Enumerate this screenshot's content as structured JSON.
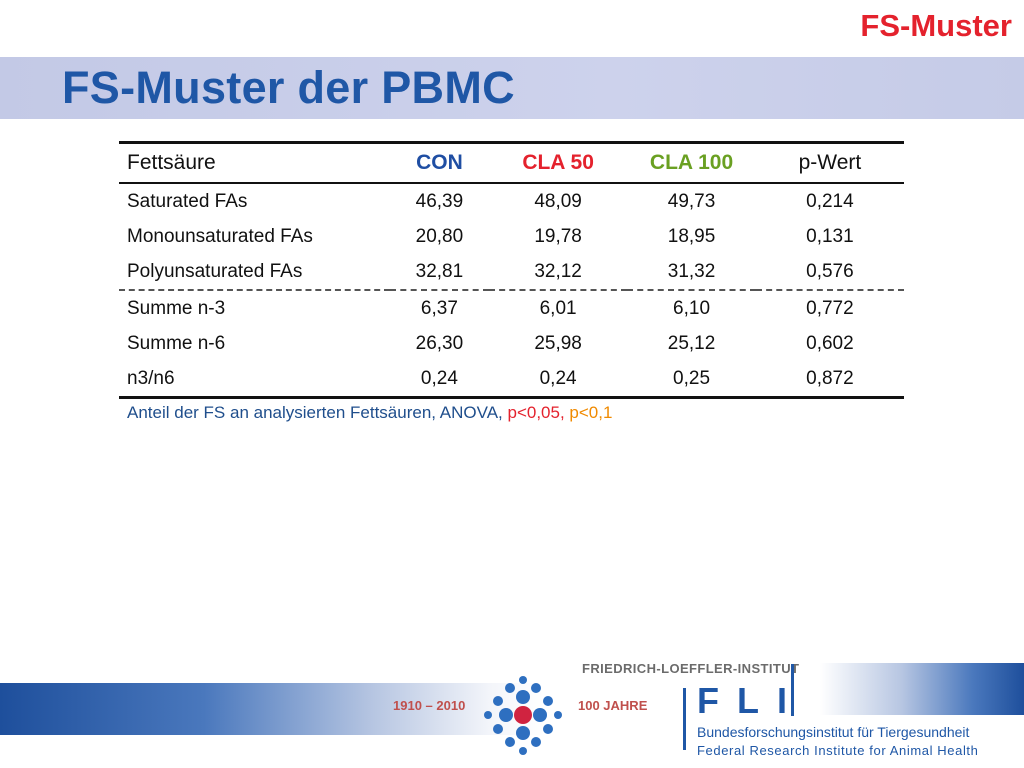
{
  "header": {
    "corner_label": "FS-Muster",
    "title": "FS-Muster der PBMC"
  },
  "table": {
    "headers": [
      {
        "label": "Fettsäure",
        "color": "#111111"
      },
      {
        "label": "CON",
        "color": "#1f4ea3"
      },
      {
        "label": "CLA 50",
        "color": "#e4222d"
      },
      {
        "label": "CLA 100",
        "color": "#6aa022"
      },
      {
        "label": "p-Wert",
        "color": "#111111"
      }
    ],
    "rows": [
      [
        "Saturated FAs",
        "46,39",
        "48,09",
        "49,73",
        "0,214"
      ],
      [
        "Monounsaturated FAs",
        "20,80",
        "19,78",
        "18,95",
        "0,131"
      ],
      [
        "Polyunsaturated FAs",
        "32,81",
        "32,12",
        "31,32",
        "0,576"
      ],
      [
        "Summe n-3",
        "6,37",
        "6,01",
        "6,10",
        "0,772"
      ],
      [
        "Summe n-6",
        "26,30",
        "25,98",
        "25,12",
        "0,602"
      ],
      [
        "n3/n6",
        "0,24",
        "0,24",
        "0,25",
        "0,872"
      ]
    ]
  },
  "footnote": {
    "text": "Anteil der FS an analysierten Fettsäuren, ANOVA, ",
    "p1": "p<0,05,",
    "p2": "p<0,1"
  },
  "footer": {
    "years": "1910 – 2010",
    "anniversary": "100 JAHRE",
    "institute_name": "FRIEDRICH-LOEFFLER-INSTITUT",
    "logo": "FLI",
    "subtitle_de": "Bundesforschungsinstitut für Tiergesundheit",
    "subtitle_en": "Federal Research Institute for Animal Health"
  },
  "colors": {
    "title_blue": "#1f57a6",
    "accent_red": "#e4222d",
    "accent_orange": "#f08a00",
    "accent_green": "#6aa022"
  }
}
